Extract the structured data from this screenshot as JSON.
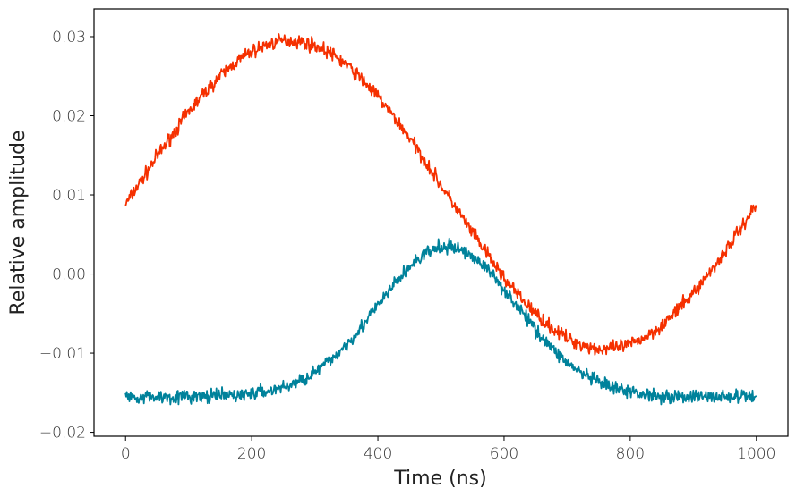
{
  "chart_data": {
    "type": "line",
    "title": "",
    "xlabel": "Time (ns)",
    "ylabel": "Relative amplitude",
    "xlim": [
      -50,
      1050
    ],
    "ylim": [
      -0.0205,
      0.0335
    ],
    "x_ticks": [
      0,
      200,
      400,
      600,
      800,
      1000
    ],
    "x_tick_labels": [
      "0",
      "200",
      "400",
      "600",
      "800",
      "1000"
    ],
    "y_ticks": [
      0.03,
      0.02,
      0.01,
      0.0,
      -0.01,
      -0.02
    ],
    "y_tick_labels": [
      "0.03",
      "0.02",
      "0.01",
      "0.00",
      "−0.01",
      "−0.02"
    ],
    "grid": false,
    "legend": "none",
    "x": [
      0,
      25,
      50,
      75,
      100,
      125,
      150,
      175,
      200,
      225,
      250,
      275,
      300,
      325,
      350,
      375,
      400,
      425,
      450,
      475,
      500,
      525,
      550,
      575,
      600,
      625,
      650,
      675,
      700,
      725,
      750,
      775,
      800,
      825,
      850,
      875,
      900,
      925,
      950,
      975,
      1000
    ],
    "series": [
      {
        "color": "#f53000",
        "values": [
          0.0088,
          0.0118,
          0.0149,
          0.0177,
          0.0205,
          0.0229,
          0.025,
          0.0268,
          0.0281,
          0.029,
          0.0295,
          0.0294,
          0.0289,
          0.0279,
          0.0265,
          0.0246,
          0.0224,
          0.0199,
          0.0172,
          0.0143,
          0.0112,
          0.0082,
          0.0052,
          0.0023,
          -0.0005,
          -0.0029,
          -0.005,
          -0.0068,
          -0.0081,
          -0.009,
          -0.0095,
          -0.0094,
          -0.0089,
          -0.0079,
          -0.0065,
          -0.0046,
          -0.0024,
          0.0001,
          0.0028,
          0.0058,
          0.0088
        ]
      },
      {
        "color": "#00829b",
        "values": [
          -0.0155,
          -0.0155,
          -0.0155,
          -0.0155,
          -0.0155,
          -0.0155,
          -0.0154,
          -0.0153,
          -0.0151,
          -0.0148,
          -0.0143,
          -0.0136,
          -0.0124,
          -0.0109,
          -0.0089,
          -0.0066,
          -0.004,
          -0.0014,
          0.0009,
          0.0026,
          0.0034,
          0.0033,
          0.0023,
          0.0005,
          -0.0019,
          -0.0045,
          -0.007,
          -0.0093,
          -0.0112,
          -0.0127,
          -0.0137,
          -0.0145,
          -0.0149,
          -0.0152,
          -0.0154,
          -0.0155,
          -0.0155,
          -0.0155,
          -0.0155,
          -0.0155,
          -0.0155
        ]
      }
    ]
  }
}
